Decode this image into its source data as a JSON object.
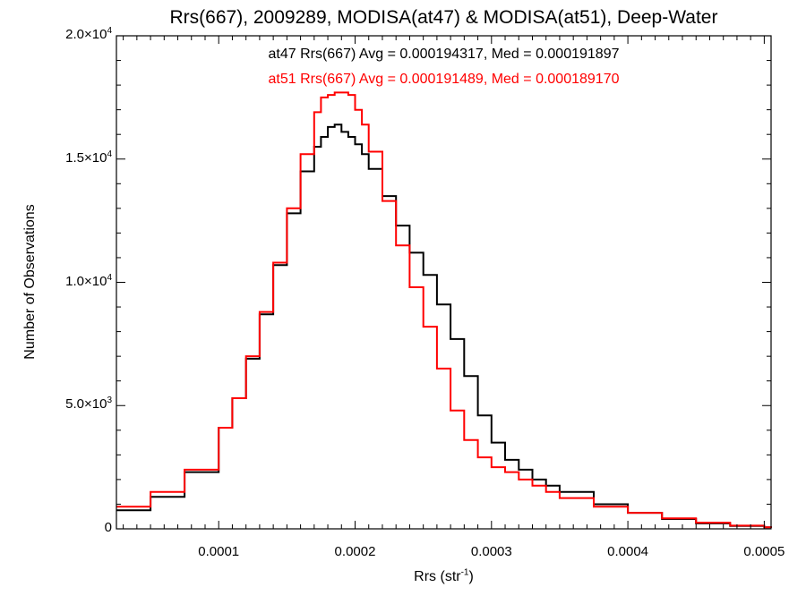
{
  "chart_data": {
    "type": "histogram",
    "title": "Rrs(667), 2009289, MODISA(at47) & MODISA(at51), Deep-Water",
    "xlabel_base": "Rrs (str",
    "xlabel_sup": "-1",
    "xlabel_tail": ")",
    "ylabel": "Number of Observations",
    "xlim": [
      2.5e-05,
      0.000505
    ],
    "ylim": [
      0,
      20000
    ],
    "xticks": [
      {
        "value": 0.0001,
        "label": "0.0001"
      },
      {
        "value": 0.0002,
        "label": "0.0002"
      },
      {
        "value": 0.0003,
        "label": "0.0003"
      },
      {
        "value": 0.0004,
        "label": "0.0004"
      },
      {
        "value": 0.0005,
        "label": "0.0005"
      }
    ],
    "yticks": [
      {
        "value": 0,
        "base": "0",
        "exp": ""
      },
      {
        "value": 5000,
        "base": "5.0×10",
        "exp": "3"
      },
      {
        "value": 10000,
        "base": "1.0×10",
        "exp": "4"
      },
      {
        "value": 15000,
        "base": "1.5×10",
        "exp": "4"
      },
      {
        "value": 20000,
        "base": "2.0×10",
        "exp": "4"
      }
    ],
    "annotations": [
      {
        "text": "at47 Rrs(667) Avg = 0.000194317, Med = 0.000191897",
        "color": "#000000"
      },
      {
        "text": "at51 Rrs(667) Avg = 0.000191489, Med = 0.000189170",
        "color": "#ff0000"
      }
    ],
    "series": [
      {
        "name": "at47",
        "color": "#000000",
        "x": [
          2.5e-05,
          5e-05,
          7.5e-05,
          0.0001,
          0.00011,
          0.00012,
          0.00013,
          0.00014,
          0.00015,
          0.00016,
          0.00017,
          0.000175,
          0.00018,
          0.000185,
          0.00019,
          0.000195,
          0.0002,
          0.000205,
          0.00021,
          0.00022,
          0.00023,
          0.00024,
          0.00025,
          0.00026,
          0.00027,
          0.00028,
          0.00029,
          0.0003,
          0.00031,
          0.00032,
          0.00033,
          0.00034,
          0.00035,
          0.000375,
          0.0004,
          0.000425,
          0.00045,
          0.000475,
          0.0005,
          0.000505
        ],
        "y": [
          750,
          1300,
          2300,
          4100,
          5300,
          6900,
          8700,
          10700,
          12800,
          14500,
          15500,
          15900,
          16300,
          16400,
          16100,
          15900,
          15600,
          15200,
          14600,
          13500,
          12300,
          11200,
          10300,
          9100,
          7700,
          6200,
          4600,
          3500,
          2800,
          2400,
          2000,
          1750,
          1500,
          1000,
          650,
          400,
          220,
          120,
          60,
          40
        ]
      },
      {
        "name": "at51",
        "color": "#ff0000",
        "x": [
          2.5e-05,
          5e-05,
          7.5e-05,
          0.0001,
          0.00011,
          0.00012,
          0.00013,
          0.00014,
          0.00015,
          0.00016,
          0.00017,
          0.000175,
          0.00018,
          0.000185,
          0.00019,
          0.000195,
          0.0002,
          0.000205,
          0.00021,
          0.00022,
          0.00023,
          0.00024,
          0.00025,
          0.00026,
          0.00027,
          0.00028,
          0.00029,
          0.0003,
          0.00031,
          0.00032,
          0.00033,
          0.00034,
          0.00035,
          0.000375,
          0.0004,
          0.000425,
          0.00045,
          0.000475,
          0.0005,
          0.000505
        ],
        "y": [
          900,
          1500,
          2400,
          4100,
          5300,
          7000,
          8800,
          10800,
          13000,
          15200,
          16900,
          17500,
          17600,
          17700,
          17700,
          17600,
          17000,
          16400,
          15300,
          13300,
          11500,
          9800,
          8200,
          6500,
          4800,
          3600,
          2900,
          2500,
          2300,
          2000,
          1750,
          1500,
          1250,
          900,
          650,
          430,
          250,
          130,
          60,
          40
        ]
      }
    ]
  }
}
